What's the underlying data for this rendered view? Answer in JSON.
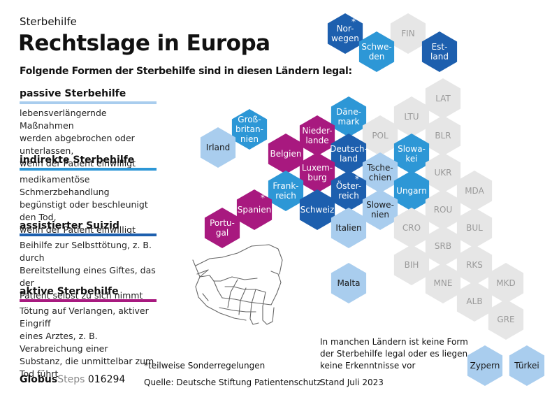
{
  "kicker": "Sterbehilfe",
  "title": "Rechtslage in Europa",
  "intro": "Folgende Formen der Sterbehilfe sind in diesen Ländern legal:",
  "categories": [
    {
      "name": "passive Sterbehilfe",
      "color": "#a9cdee",
      "lines": [
        "lebensverlängernde Maßnahmen",
        "werden abgebrochen oder unterlassen,",
        "wenn der Patient einwilligt"
      ]
    },
    {
      "name": "indirekte Sterbehilfe",
      "color": "#2d97d6",
      "lines": [
        "medikamentöse Schmerzbehandlung",
        "begünstigt oder beschleunigt den Tod,",
        "wenn der Patient einwilligt"
      ]
    },
    {
      "name": "assistierter Suizid",
      "color": "#1d5fae",
      "lines": [
        "Beihilfe zur Selbsttötung, z. B. durch",
        "Bereitstellung eines Giftes, das der",
        "Patient selbst zu sich nimmt"
      ]
    },
    {
      "name": "aktive Sterbehilfe",
      "color": "#a8197f",
      "lines": [
        "Tötung auf Verlangen, aktiver Eingriff",
        "eines Arztes, z. B. Verabreichung einer",
        "Substanz, die unmittelbar zum",
        "Tod führt"
      ]
    }
  ],
  "colors": {
    "none": "#e6e6e6",
    "none_text": "#9a9a9a",
    "passive": "#a9cdee",
    "indirect": "#2d97d6",
    "assisted": "#1d5fae",
    "active": "#a8197f"
  },
  "countries": [
    {
      "lines": [
        "Nor-",
        "wegen"
      ],
      "type": "assisted",
      "star": true
    },
    {
      "lines": [
        "FIN"
      ],
      "type": "none"
    },
    {
      "lines": [
        "Schwe-",
        "den"
      ],
      "type": "indirect"
    },
    {
      "lines": [
        "Est-",
        "land"
      ],
      "type": "assisted"
    },
    {
      "lines": [
        "LAT"
      ],
      "type": "none"
    },
    {
      "lines": [
        "Groß-",
        "britan-",
        "nien"
      ],
      "type": "indirect"
    },
    {
      "lines": [
        "Irland"
      ],
      "type": "passive"
    },
    {
      "lines": [
        "Däne-",
        "mark"
      ],
      "type": "indirect"
    },
    {
      "lines": [
        "LTU"
      ],
      "type": "none"
    },
    {
      "lines": [
        "Nieder-",
        "lande"
      ],
      "type": "active"
    },
    {
      "lines": [
        "POL"
      ],
      "type": "none"
    },
    {
      "lines": [
        "BLR"
      ],
      "type": "none"
    },
    {
      "lines": [
        "Belgien"
      ],
      "type": "active"
    },
    {
      "lines": [
        "Deutsch-",
        "land"
      ],
      "type": "assisted"
    },
    {
      "lines": [
        "Slowa-",
        "kei"
      ],
      "type": "indirect"
    },
    {
      "lines": [
        "Luxem-",
        "burg"
      ],
      "type": "active"
    },
    {
      "lines": [
        "Tsche-",
        "chien"
      ],
      "type": "passive"
    },
    {
      "lines": [
        "UKR"
      ],
      "type": "none"
    },
    {
      "lines": [
        "Frank-",
        "reich"
      ],
      "type": "indirect"
    },
    {
      "lines": [
        "Öster-",
        "reich"
      ],
      "type": "assisted",
      "star": true
    },
    {
      "lines": [
        "Ungarn"
      ],
      "type": "indirect"
    },
    {
      "lines": [
        "MDA"
      ],
      "type": "none"
    },
    {
      "lines": [
        "Spanien"
      ],
      "type": "active",
      "star": true
    },
    {
      "lines": [
        "Schweiz"
      ],
      "type": "assisted"
    },
    {
      "lines": [
        "Slowe-",
        "nien"
      ],
      "type": "passive"
    },
    {
      "lines": [
        "ROU"
      ],
      "type": "none"
    },
    {
      "lines": [
        "Portu-",
        "gal"
      ],
      "type": "active"
    },
    {
      "lines": [
        "Italien"
      ],
      "type": "passive"
    },
    {
      "lines": [
        "CRO"
      ],
      "type": "none"
    },
    {
      "lines": [
        "BUL"
      ],
      "type": "none"
    },
    {
      "lines": [
        "SRB"
      ],
      "type": "none"
    },
    {
      "lines": [
        "BIH"
      ],
      "type": "none"
    },
    {
      "lines": [
        "RKS"
      ],
      "type": "none"
    },
    {
      "lines": [
        "Malta"
      ],
      "type": "passive"
    },
    {
      "lines": [
        "MNE"
      ],
      "type": "none"
    },
    {
      "lines": [
        "MKD"
      ],
      "type": "none"
    },
    {
      "lines": [
        "ALB"
      ],
      "type": "none"
    },
    {
      "lines": [
        "GRE"
      ],
      "type": "none"
    },
    {
      "lines": [
        "Zypern"
      ],
      "type": "passive"
    },
    {
      "lines": [
        "Türkei"
      ],
      "type": "passive"
    }
  ],
  "star_symbol": "*",
  "footnote": "*teilweise Sonderregelungen",
  "source": "Quelle: Deutsche Stiftung Patientenschutz",
  "no_info_note": [
    "In manchen Ländern ist keine Form",
    "der Sterbehilfe legal oder es liegen",
    "keine Erkenntnisse vor"
  ],
  "date": "Stand Juli 2023",
  "logo": {
    "brand": "Globus",
    "sub": "Steps",
    "number": "016294"
  }
}
